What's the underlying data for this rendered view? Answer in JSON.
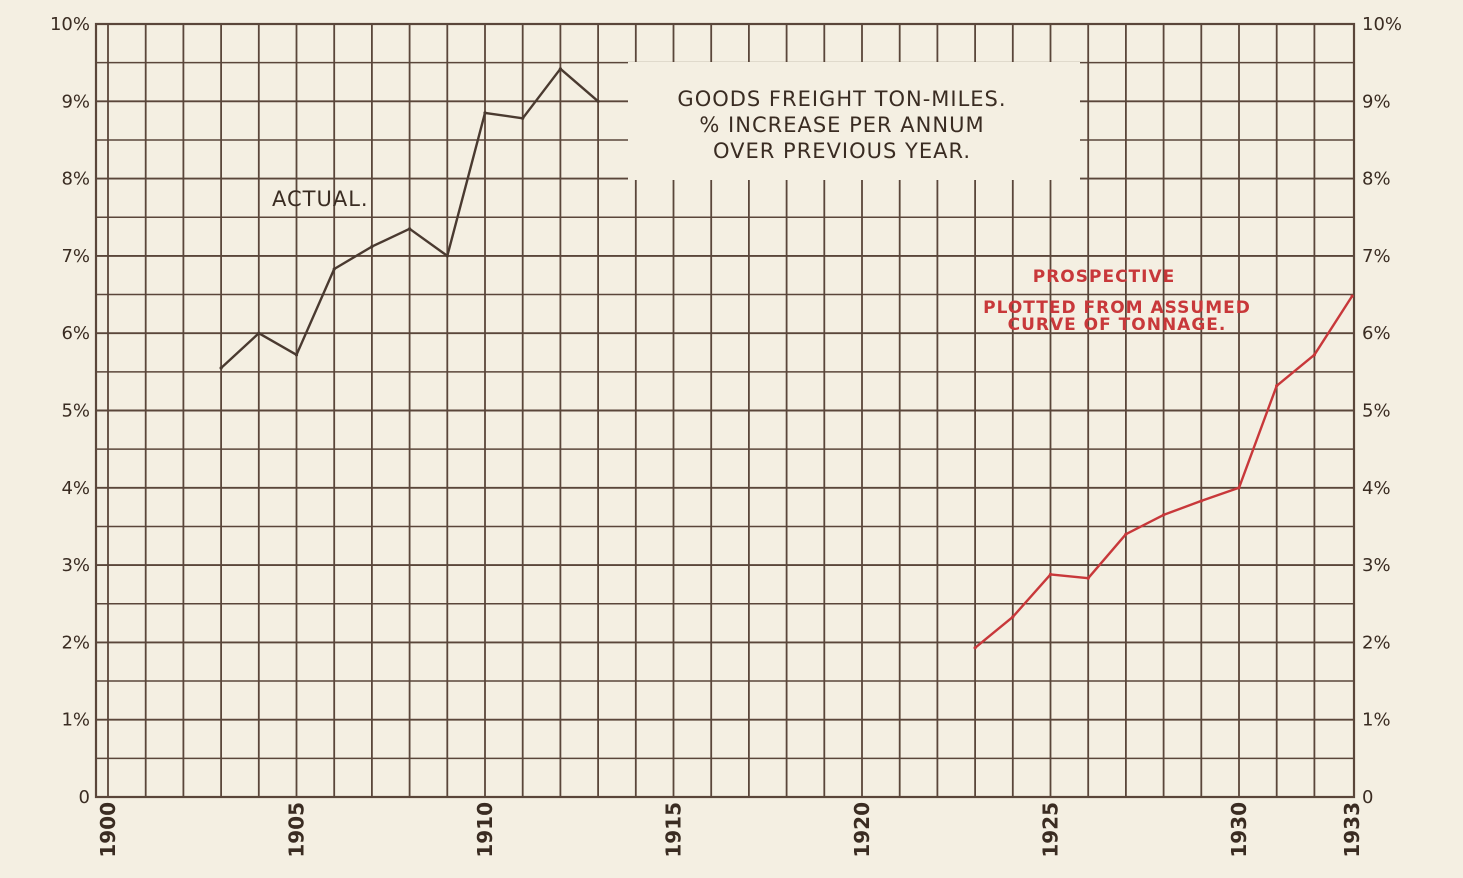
{
  "chart_data": {
    "type": "line",
    "title": [
      "GOODS FREIGHT TON-MILES.",
      "% INCREASE PER ANNUM",
      "OVER PREVIOUS YEAR."
    ],
    "xlabel": "",
    "ylabel": "",
    "xlim": [
      1900,
      1933
    ],
    "ylim": [
      0,
      10
    ],
    "x_tick_labels": [
      "1900",
      "1905",
      "1910",
      "1915",
      "1920",
      "1925",
      "1930",
      "1933"
    ],
    "x_tick_values": [
      1900,
      1905,
      1910,
      1915,
      1920,
      1925,
      1930,
      1933
    ],
    "y_tick_labels_left": [
      "0",
      "1%",
      "2%",
      "3%",
      "4%",
      "5%",
      "6%",
      "7%",
      "8%",
      "9%",
      "10%"
    ],
    "y_tick_labels_right": [
      "0",
      "1%",
      "2%",
      "3%",
      "4%",
      "5%",
      "6%",
      "7%",
      "8%",
      "9%",
      "10%"
    ],
    "grid": true,
    "series": [
      {
        "name": "ACTUAL.",
        "color": "#4a3a30",
        "x": [
          1903,
          1904,
          1905,
          1906,
          1907,
          1908,
          1909,
          1910,
          1911,
          1912,
          1913
        ],
        "y": [
          5.55,
          6.0,
          5.72,
          6.83,
          7.12,
          7.35,
          7.0,
          8.85,
          8.78,
          9.42,
          9.0
        ]
      },
      {
        "name": "PROSPECTIVE",
        "color": "#c8383a",
        "x": [
          1923,
          1924,
          1925,
          1926,
          1927,
          1928,
          1929,
          1930,
          1931,
          1932,
          1933
        ],
        "y": [
          1.93,
          2.33,
          2.88,
          2.83,
          3.4,
          3.65,
          3.83,
          4.0,
          5.32,
          5.72,
          6.48
        ]
      }
    ],
    "annotations": {
      "actual_label": "ACTUAL.",
      "prospective_title": "PROSPECTIVE",
      "prospective_note": [
        "PLOTTED FROM ASSUMED",
        "CURVE OF TONNAGE."
      ]
    }
  },
  "colors": {
    "paper": "#f4efe2",
    "grid": "#5a463a",
    "actual": "#4a3a30",
    "prospective": "#c8383a"
  }
}
